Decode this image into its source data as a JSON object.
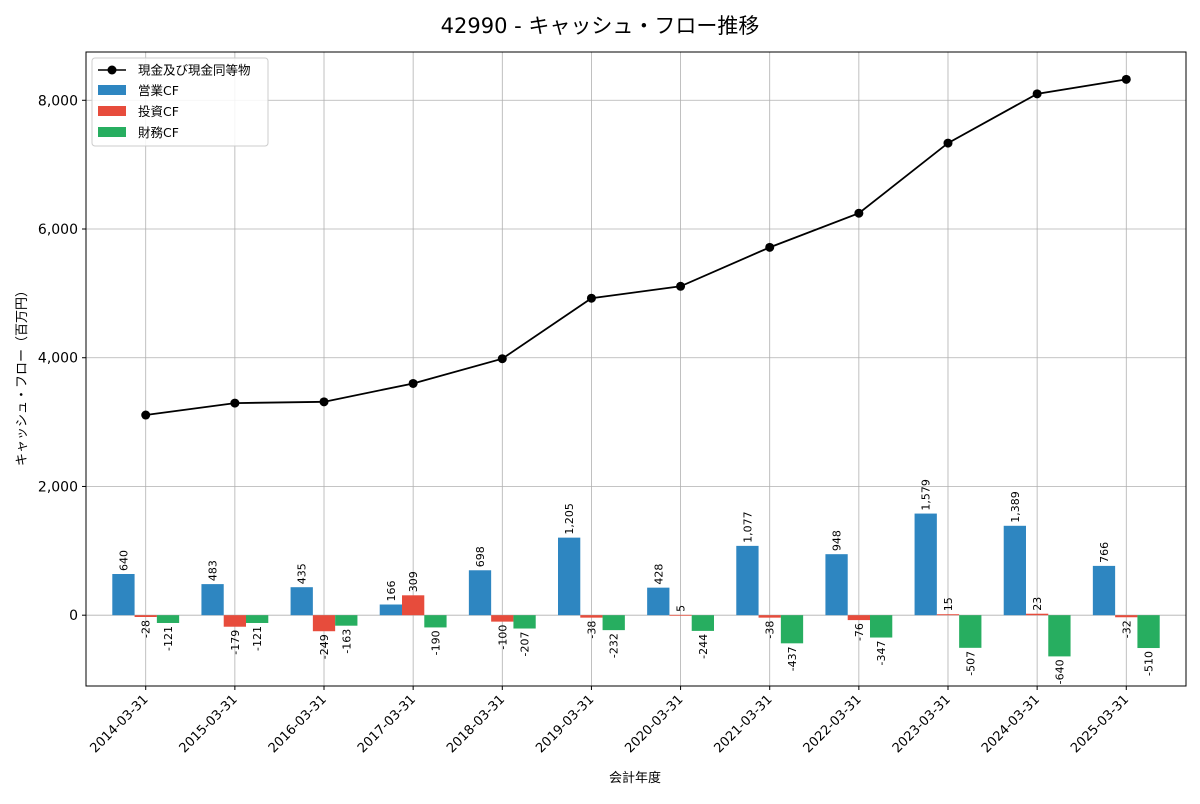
{
  "chart_data": {
    "type": "bar",
    "title": "42990 - キャッシュ・フロー推移",
    "xlabel": "会計年度",
    "ylabel": "キャッシュ・フロー（百万円）",
    "ylim": [
      -1100,
      8750
    ],
    "yticks": [
      0,
      2000,
      4000,
      6000,
      8000
    ],
    "ytick_labels": [
      "0",
      "2,000",
      "4,000",
      "6,000",
      "8,000"
    ],
    "grid": true,
    "legend_position": "top-left",
    "categories": [
      "2014-03-31",
      "2015-03-31",
      "2016-03-31",
      "2017-03-31",
      "2018-03-31",
      "2019-03-31",
      "2020-03-31",
      "2021-03-31",
      "2022-03-31",
      "2023-03-31",
      "2024-03-31",
      "2025-03-31"
    ],
    "series": [
      {
        "name": "営業CF",
        "kind": "bar",
        "color": "#2e86c1",
        "values": [
          640,
          483,
          435,
          166,
          698,
          1205,
          428,
          1077,
          948,
          1579,
          1389,
          766
        ],
        "labels": [
          "640",
          "483",
          "435",
          "166",
          "698",
          "1,205",
          "428",
          "1,077",
          "948",
          "1,579",
          "1,389",
          "766"
        ]
      },
      {
        "name": "投資CF",
        "kind": "bar",
        "color": "#e74c3c",
        "values": [
          -28,
          -179,
          -249,
          309,
          -100,
          -38,
          5,
          -38,
          -76,
          15,
          23,
          -32
        ],
        "labels": [
          "-28",
          "-179",
          "-249",
          "309",
          "-100",
          "-38",
          "5",
          "-38",
          "-76",
          "15",
          "23",
          "-32"
        ]
      },
      {
        "name": "財務CF",
        "kind": "bar",
        "color": "#27ae60",
        "values": [
          -121,
          -121,
          -163,
          -190,
          -207,
          -232,
          -244,
          -437,
          -347,
          -507,
          -640,
          -510
        ],
        "labels": [
          "-121",
          "-121",
          "-163",
          "-190",
          "-207",
          "-232",
          "-244",
          "-437",
          "-347",
          "-507",
          "-640",
          "-510"
        ]
      },
      {
        "name": "現金及び現金同等物",
        "kind": "line",
        "color": "#000000",
        "values": [
          3110,
          3295,
          3315,
          3600,
          3985,
          4925,
          5110,
          5715,
          6245,
          7335,
          8100,
          8325
        ]
      }
    ]
  }
}
